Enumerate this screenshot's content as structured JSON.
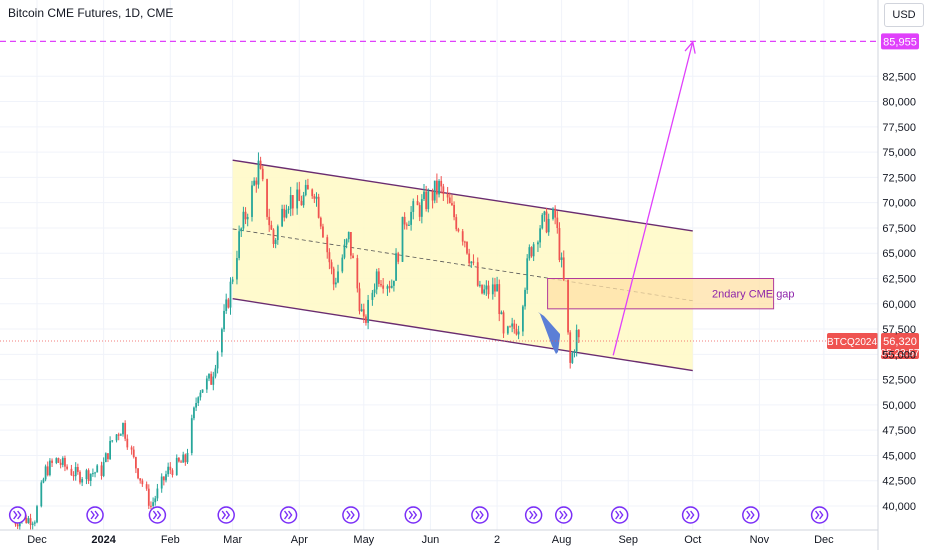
{
  "header": {
    "title": "Bitcoin CME Futures, 1D, CME",
    "currency": "USD"
  },
  "colors": {
    "up": "#26a69a",
    "down": "#ef5350",
    "channel_fill": "#fff9c4",
    "channel_line": "#6a2c70",
    "target": "#e040fb",
    "arrow": "#5b7fd6",
    "gap_fill": "#ffe0a6",
    "gap_border": "#b03a9c",
    "event_icon": "#7b2ff7"
  },
  "chart_data": {
    "type": "candlestick",
    "title": "Bitcoin CME Futures, 1D, CME",
    "ylim": [
      39000,
      89000
    ],
    "y_ticks": [
      40000,
      42500,
      45000,
      47500,
      50000,
      52500,
      55000,
      57500,
      60000,
      62500,
      65000,
      67500,
      70000,
      72500,
      75000,
      77500,
      80000,
      82500
    ],
    "y_tick_labels": [
      "40,000",
      "42,500",
      "45,000",
      "47,500",
      "50,000",
      "52,500",
      "55,000",
      "57,500",
      "60,000",
      "62,500",
      "65,000",
      "67,500",
      "70,000",
      "72,500",
      "75,000",
      "77,500",
      "80,000",
      "82,500"
    ],
    "x_ticks": [
      {
        "label": "Dec",
        "date": "2023-12-01"
      },
      {
        "label": "2024",
        "date": "2024-01-01"
      },
      {
        "label": "Feb",
        "date": "2024-02-01"
      },
      {
        "label": "Mar",
        "date": "2024-03-01"
      },
      {
        "label": "Apr",
        "date": "2024-04-01"
      },
      {
        "label": "May",
        "date": "2024-05-01"
      },
      {
        "label": "Jun",
        "date": "2024-06-01"
      },
      {
        "label": "2",
        "date": "2024-07-02"
      },
      {
        "label": "Aug",
        "date": "2024-08-01"
      },
      {
        "label": "Sep",
        "date": "2024-09-01"
      },
      {
        "label": "Oct",
        "date": "2024-10-01"
      },
      {
        "label": "Nov",
        "date": "2024-11-01"
      },
      {
        "label": "Dec",
        "date": "2024-12-01"
      }
    ],
    "price_path": [
      [
        "2023-11-20",
        38500
      ],
      [
        "2023-11-30",
        38800
      ],
      [
        "2023-12-05",
        43500
      ],
      [
        "2023-12-10",
        44500
      ],
      [
        "2023-12-20",
        43000
      ],
      [
        "2023-12-31",
        43500
      ],
      [
        "2024-01-05",
        46500
      ],
      [
        "2024-01-10",
        48000
      ],
      [
        "2024-01-15",
        44500
      ],
      [
        "2024-01-23",
        40000
      ],
      [
        "2024-01-31",
        43500
      ],
      [
        "2024-02-08",
        44500
      ],
      [
        "2024-02-14",
        51500
      ],
      [
        "2024-02-20",
        52500
      ],
      [
        "2024-02-28",
        60500
      ],
      [
        "2024-03-04",
        66500
      ],
      [
        "2024-03-08",
        69500
      ],
      [
        "2024-03-13",
        73500
      ],
      [
        "2024-03-20",
        66000
      ],
      [
        "2024-03-26",
        70500
      ],
      [
        "2024-04-01",
        70000
      ],
      [
        "2024-04-08",
        71500
      ],
      [
        "2024-04-12",
        67500
      ],
      [
        "2024-04-17",
        62000
      ],
      [
        "2024-04-24",
        66500
      ],
      [
        "2024-05-01",
        57800
      ],
      [
        "2024-05-07",
        63000
      ],
      [
        "2024-05-14",
        62000
      ],
      [
        "2024-05-20",
        68500
      ],
      [
        "2024-05-27",
        69500
      ],
      [
        "2024-06-05",
        71500
      ],
      [
        "2024-06-10",
        69500
      ],
      [
        "2024-06-17",
        66500
      ],
      [
        "2024-06-24",
        61000
      ],
      [
        "2024-07-02",
        61500
      ],
      [
        "2024-07-05",
        56500
      ],
      [
        "2024-07-12",
        58000
      ],
      [
        "2024-07-17",
        65000
      ],
      [
        "2024-07-22",
        67800
      ],
      [
        "2024-07-29",
        68500
      ],
      [
        "2024-08-02",
        62000
      ],
      [
        "2024-08-05",
        54000
      ],
      [
        "2024-08-08",
        57000
      ],
      [
        "2024-08-09",
        56320
      ]
    ],
    "last_price": {
      "value": 56320,
      "label": "56,320",
      "symbol": "BTCQ2024",
      "countdown": "05:23:57"
    },
    "target_level": {
      "value": 85955,
      "label": "85,955"
    },
    "channel": {
      "upper": [
        [
          "2024-03-01",
          74200
        ],
        [
          "2024-10-01",
          67200
        ]
      ],
      "lower": [
        [
          "2024-03-01",
          60500
        ],
        [
          "2024-10-01",
          53400
        ]
      ],
      "mid": [
        [
          "2024-03-01",
          67400
        ],
        [
          "2024-10-01",
          60300
        ]
      ]
    },
    "gap_zone": {
      "x0": "2024-08-01",
      "x1": "2024-10-01",
      "y0": 59500,
      "y1": 62500,
      "label": "2ndary CME gap"
    },
    "projection": {
      "from": [
        "2024-08-25",
        54900
      ],
      "to": [
        "2024-10-01",
        85900
      ]
    },
    "event_dates": [
      "2023-11-22",
      "2023-12-28",
      "2024-01-26",
      "2024-02-27",
      "2024-03-27",
      "2024-04-25",
      "2024-05-24",
      "2024-06-24",
      "2024-07-19",
      "2024-08-02",
      "2024-08-28",
      "2024-09-30",
      "2024-10-28",
      "2024-11-29"
    ]
  }
}
